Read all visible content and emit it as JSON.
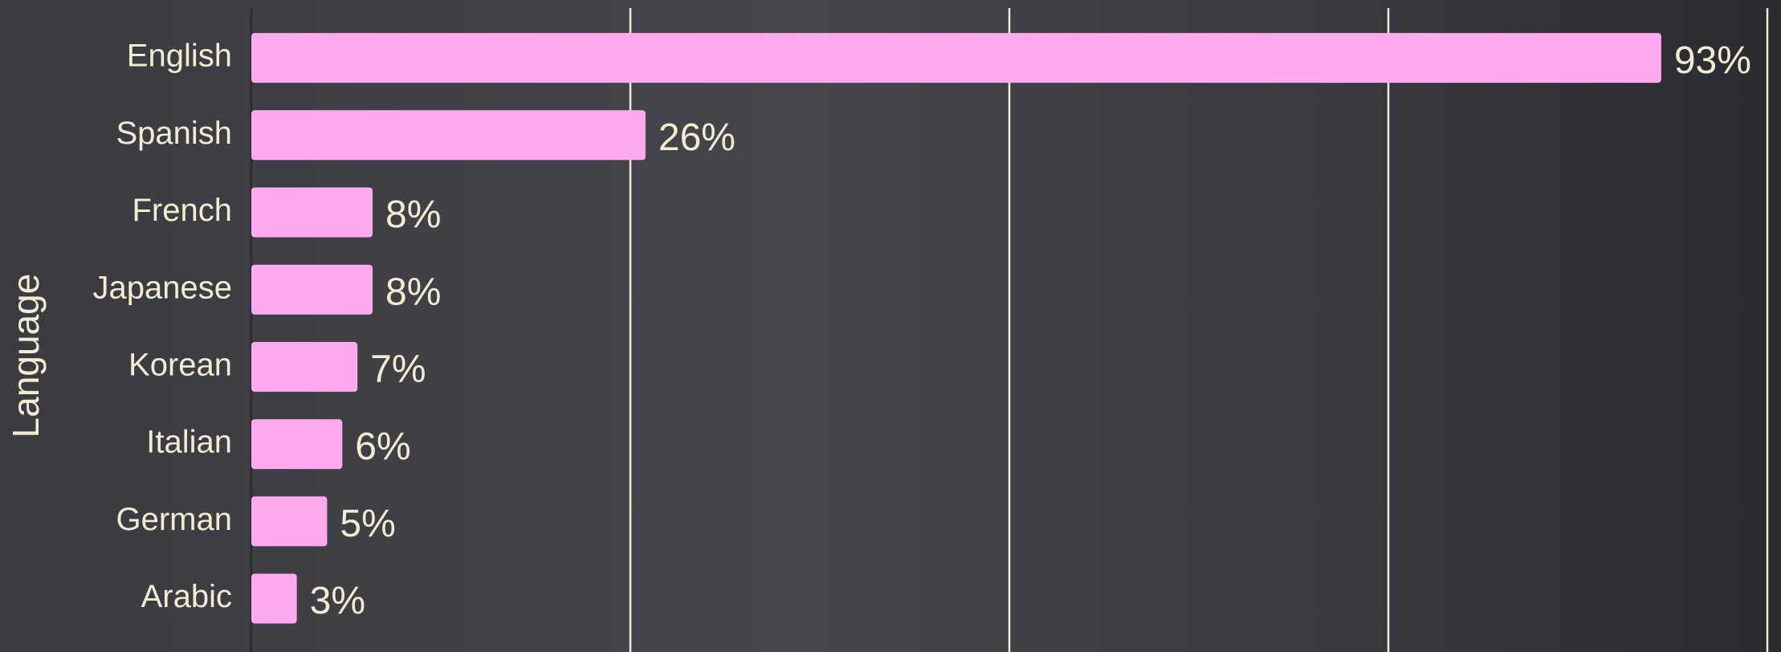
{
  "chart_data": {
    "type": "bar",
    "orientation": "horizontal",
    "y_label": "Language",
    "categories": [
      "English",
      "Spanish",
      "French",
      "Japanese",
      "Korean",
      "Italian",
      "German",
      "Arabic"
    ],
    "values": [
      93,
      26,
      8,
      8,
      7,
      6,
      5,
      3
    ],
    "value_labels": [
      "93%",
      "26%",
      "8%",
      "8%",
      "7%",
      "6%",
      "5%",
      "3%"
    ],
    "color": "#ffaaf0",
    "xlim": [
      0,
      100
    ],
    "xticks": [
      25,
      50,
      75,
      100
    ],
    "grid": true
  }
}
